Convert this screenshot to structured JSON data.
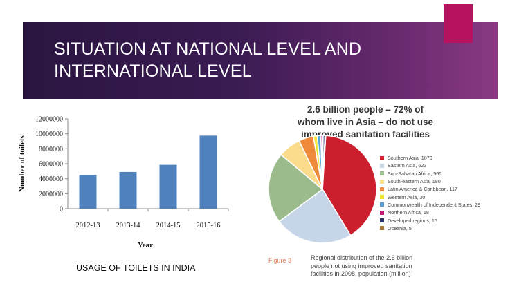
{
  "slide": {
    "title_lines": [
      "SITUATION AT NATIONAL LEVEL AND",
      "INTERNATIONAL LEVEL"
    ],
    "left_caption": "USAGE OF TOILETS IN INDIA",
    "accent_color": "#b5125f",
    "band_color": "#3a1b52"
  },
  "pie_section": {
    "title_lines": [
      "2.6 billion people – 72% of",
      "whom live in Asia – do not use",
      "improved sanitation facilities"
    ],
    "figure_label": "Figure 3",
    "figure_caption_lines": [
      "Regional distribution of the 2.6 billion",
      "people not using improved sanitation",
      "facilities in 2008, population (million)"
    ]
  },
  "chart_data": [
    {
      "type": "bar",
      "title": "",
      "xlabel": "Year",
      "ylabel": "Number of toilets",
      "categories": [
        "2012-13",
        "2013-14",
        "2014-15",
        "2015-16"
      ],
      "values": [
        4500000,
        4900000,
        5850000,
        9750000
      ],
      "ylim": [
        0,
        12000000
      ],
      "yticks": [
        0,
        2000000,
        4000000,
        6000000,
        8000000,
        10000000,
        12000000
      ],
      "ytick_labels": [
        "0",
        "2000000",
        "4000000",
        "6000000",
        "8000000",
        "10000000",
        "12000000"
      ],
      "bar_color": "#4f81bd"
    },
    {
      "type": "pie",
      "title": "",
      "slices": [
        {
          "label": "Southern Asia, 1070",
          "value": 1070,
          "color": "#cc1f2e"
        },
        {
          "label": "Eastern Asia, 623",
          "value": 623,
          "color": "#c6d6e8"
        },
        {
          "label": "Sub-Saharan Africa, 565",
          "value": 565,
          "color": "#9bbb8c"
        },
        {
          "label": "South-eastern Asia, 180",
          "value": 180,
          "color": "#fbdc8c"
        },
        {
          "label": "Latin America & Caribbean, 117",
          "value": 117,
          "color": "#ee8a3a"
        },
        {
          "label": "Western Asia, 30",
          "value": 30,
          "color": "#f2e33a"
        },
        {
          "label": "Commonwealth of Independent States, 29",
          "value": 29,
          "color": "#5ba2d6"
        },
        {
          "label": "Northern Africa, 18",
          "value": 18,
          "color": "#c2187a"
        },
        {
          "label": "Developed regions, 15",
          "value": 15,
          "color": "#2e3768"
        },
        {
          "label": "Oceania, 5",
          "value": 5,
          "color": "#a87838"
        }
      ]
    }
  ]
}
